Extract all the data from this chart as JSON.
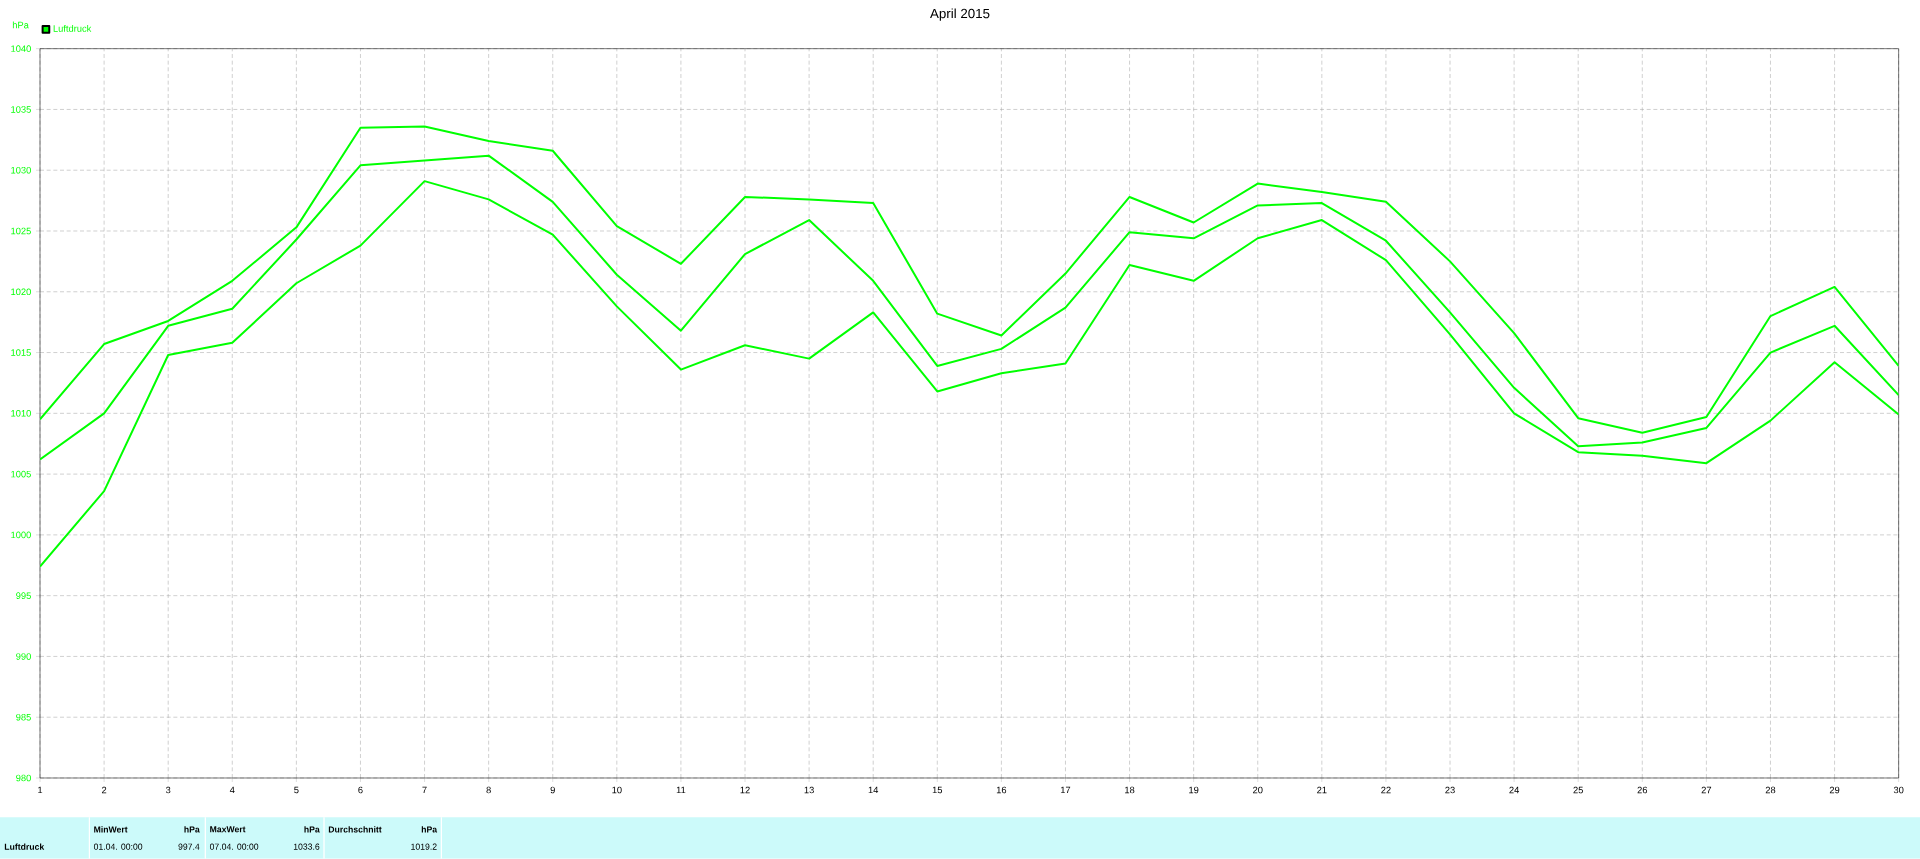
{
  "chart_data": {
    "type": "line",
    "title": "April 2015",
    "ylabel": "hPa",
    "x": [
      1,
      2,
      3,
      4,
      5,
      6,
      7,
      8,
      9,
      10,
      11,
      12,
      13,
      14,
      15,
      16,
      17,
      18,
      19,
      20,
      21,
      22,
      23,
      24,
      25,
      26,
      27,
      28,
      29,
      30
    ],
    "series": [
      {
        "name": "Luftdruck",
        "color": "#00ff00",
        "values": [
          1006.2,
          1010.0,
          1017.2,
          1018.6,
          1024.3,
          1030.4,
          1030.8,
          1031.2,
          1027.4,
          1021.4,
          1016.8,
          1023.1,
          1025.9,
          1020.9,
          1013.9,
          1015.3,
          1018.7,
          1024.9,
          1024.4,
          1027.1,
          1027.3,
          1024.2,
          1018.3,
          1012.1,
          1007.3,
          1007.6,
          1008.8,
          1015.0,
          1017.2,
          1011.5
        ]
      },
      {
        "color": "#00ff00",
        "values": [
          1009.5,
          1015.7,
          1017.6,
          1020.9,
          1025.3,
          1033.5,
          1033.6,
          1032.4,
          1031.6,
          1025.4,
          1022.3,
          1027.8,
          1027.6,
          1027.3,
          1018.2,
          1016.4,
          1021.5,
          1027.8,
          1025.7,
          1028.9,
          1028.2,
          1027.4,
          1022.5,
          1016.6,
          1009.6,
          1008.4,
          1009.7,
          1018.0,
          1020.4,
          1013.9
        ]
      },
      {
        "color": "#00ff00",
        "values": [
          997.4,
          1003.6,
          1014.8,
          1015.8,
          1020.7,
          1023.8,
          1029.1,
          1027.6,
          1024.7,
          1018.8,
          1013.6,
          1015.6,
          1014.5,
          1018.3,
          1011.8,
          1013.3,
          1014.1,
          1022.2,
          1020.9,
          1024.4,
          1025.9,
          1022.6,
          1016.5,
          1010.0,
          1006.8,
          1006.5,
          1005.9,
          1009.4,
          1014.2,
          1009.9
        ]
      }
    ],
    "xlim": [
      1,
      30
    ],
    "xticks": [
      1,
      2,
      3,
      4,
      5,
      6,
      7,
      8,
      9,
      10,
      11,
      12,
      13,
      14,
      15,
      16,
      17,
      18,
      19,
      20,
      21,
      22,
      23,
      24,
      25,
      26,
      27,
      28,
      29,
      30
    ],
    "ylim": [
      980,
      1040
    ],
    "yticks": [
      980,
      985,
      990,
      995,
      1000,
      1005,
      1010,
      1015,
      1020,
      1025,
      1030,
      1035,
      1040
    ],
    "grid": true,
    "legend": "top left",
    "marker": "none",
    "line_style": "solid",
    "annotations": [
      "Luftdruck",
      "MinWert",
      "hPa",
      "01.04.  00:00",
      "997.4",
      "MaxWert",
      "hPa",
      "07.04.  00:00",
      "1033.6",
      "Durchschnitt",
      "hPa",
      "1019.2"
    ]
  }
}
